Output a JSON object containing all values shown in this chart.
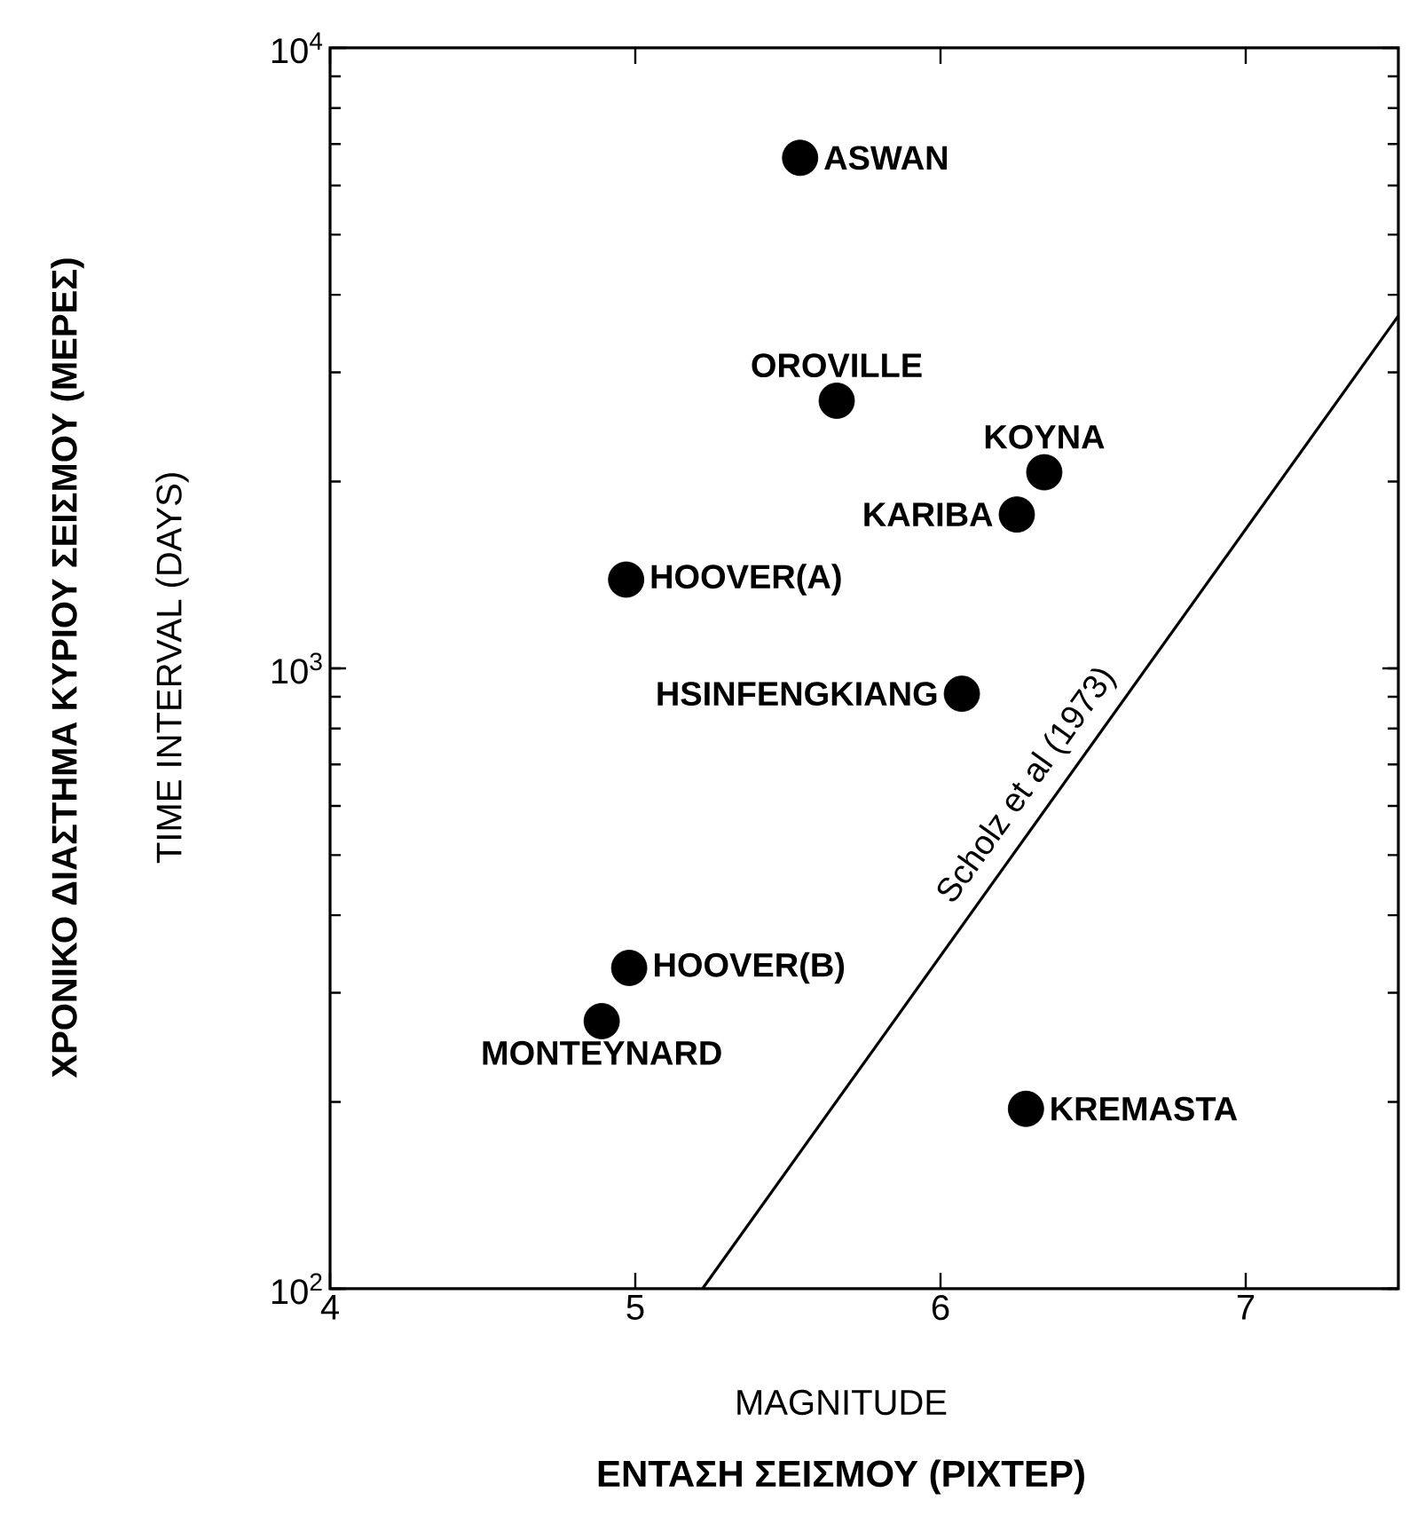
{
  "chart_data": {
    "type": "scatter",
    "xlabel": "MAGNITUDE",
    "ylabel": "TIME INTERVAL (DAYS)",
    "xlim": [
      4,
      7.5
    ],
    "xticks": [
      4,
      5,
      6,
      7
    ],
    "ylim": [
      100,
      10000
    ],
    "yticks": [
      {
        "value": 100,
        "label": "10$^{2}$"
      },
      {
        "value": 1000,
        "label": "10$^{3}$"
      },
      {
        "value": 10000,
        "label": "10$^{4}$"
      }
    ],
    "log": "y",
    "legend": false,
    "series": [
      {
        "marker": "circle",
        "color": "#000000",
        "x": [
          5.54,
          5.66,
          6.34,
          6.25,
          4.97,
          6.07,
          4.98,
          4.89,
          6.28
        ],
        "values": [
          6650,
          2700,
          2070,
          1770,
          1390,
          910,
          329,
          270,
          195
        ]
      },
      {
        "type": "line",
        "marker": "none",
        "name": "Scholz et al (1973)",
        "color": "#000000",
        "x": [
          5.22,
          7.5
        ],
        "values": [
          100,
          3700
        ]
      }
    ],
    "annotations": [
      {
        "text": "ASWAN",
        "x": 5.54,
        "y": 6650
      },
      {
        "text": "OROVILLE",
        "x": 5.66,
        "y": 2700
      },
      {
        "text": "KOYNA",
        "x": 6.34,
        "y": 2070
      },
      {
        "text": "KARIBA",
        "x": 6.25,
        "y": 1770
      },
      {
        "text": "HOOVER(A)",
        "x": 4.97,
        "y": 1390
      },
      {
        "text": "HSINFENGKIANG",
        "x": 6.07,
        "y": 910
      },
      {
        "text": "HOOVER(B)",
        "x": 4.98,
        "y": 329
      },
      {
        "text": "MONTEYNARD",
        "x": 4.89,
        "y": 270
      },
      {
        "text": "KREMASTA",
        "x": 6.28,
        "y": 195
      },
      "ΕΝΤΑΣΗ ΣΕΙΣΜΟΥ (ΡΙΧΤΕΡ)",
      "ΧΡΟΝΙΚΟ ΔΙΑΣΤΗΜΑ ΚΥΡΙΟΥ ΣΕΙΣΜΟΥ (ΜΕΡΕΣ)"
    ]
  }
}
